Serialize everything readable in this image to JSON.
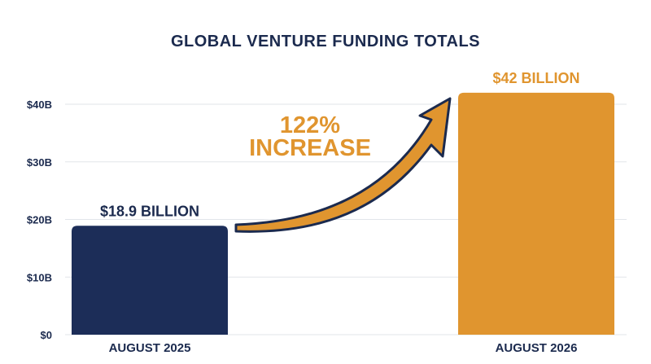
{
  "chart_data": {
    "type": "bar",
    "title": "GLOBAL VENTURE FUNDING TOTALS",
    "categories": [
      "AUGUST 2025",
      "AUGUST 2026"
    ],
    "values": [
      18.9,
      42
    ],
    "data_labels": [
      "$18.9 BILLION",
      "$42 BILLION"
    ],
    "ylim": [
      0,
      40
    ],
    "yticks": [
      0,
      10,
      20,
      30,
      40
    ],
    "ytick_labels": [
      "$0",
      "$10B",
      "$20B",
      "$30B",
      "$40B"
    ],
    "xlabel": "",
    "ylabel": "",
    "grid": true,
    "legend": "none",
    "annotation": {
      "lines": [
        "122%",
        "INCREASE"
      ],
      "arrow": "from first bar to second bar"
    }
  },
  "colors": {
    "title": "#1b2a4e",
    "axis_text": "#1b2a4e",
    "bar_1": "#1c2d58",
    "bar_2": "#e0952f",
    "label_2": "#e0952f",
    "annotation": "#e0952f",
    "arrow_fill": "#e0952f",
    "arrow_stroke": "#1b2a4e",
    "grid": "#e2e5ea"
  }
}
